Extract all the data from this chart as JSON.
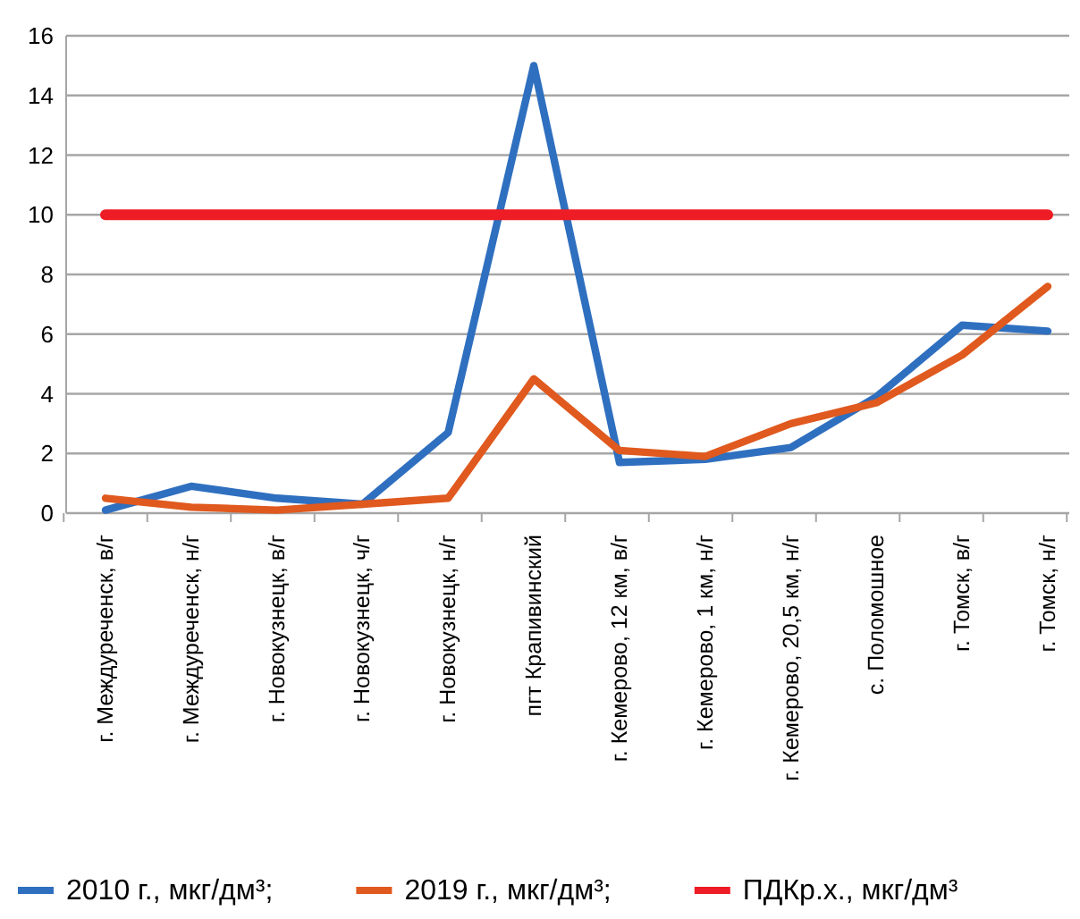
{
  "chart_data": {
    "type": "line",
    "categories": [
      "г. Междуреченск, в/г",
      "г. Междуреченск, н/г",
      "г. Новокузнецк, в/г",
      "г. Новокузнецк, ч/г",
      "г. Новокузнецк, н/г",
      "пгт Крапивинский",
      "г. Кемерово, 12 км, в/г",
      "г. Кемерово, 1 км, н/г",
      "г. Кемерово, 20,5 км, н/г",
      "с. Поломошное",
      "г. Томск, в/г",
      "г. Томск, н/г"
    ],
    "series": [
      {
        "name": "2010 г., мкг/дм³;",
        "color": "#2f6fbf",
        "values": [
          0.1,
          0.9,
          0.5,
          0.3,
          2.7,
          15,
          1.7,
          1.8,
          2.2,
          3.9,
          6.3,
          6.1
        ]
      },
      {
        "name": "2019 г., мкг/дм³;",
        "color": "#e0591e",
        "values": [
          0.5,
          0.2,
          0.1,
          0.3,
          0.5,
          4.5,
          2.1,
          1.9,
          3.0,
          3.7,
          5.3,
          7.6
        ]
      },
      {
        "name": "ПДКр.х., мкг/дм³",
        "color": "#ee1c24",
        "values": [
          10,
          10,
          10,
          10,
          10,
          10,
          10,
          10,
          10,
          10,
          10,
          10
        ]
      }
    ],
    "ylim": [
      0,
      16
    ],
    "yticks": [
      0,
      2,
      4,
      6,
      8,
      10,
      12,
      14,
      16
    ],
    "grid": "y",
    "legend": "bottom",
    "marker": "none",
    "line_style": "solid"
  }
}
